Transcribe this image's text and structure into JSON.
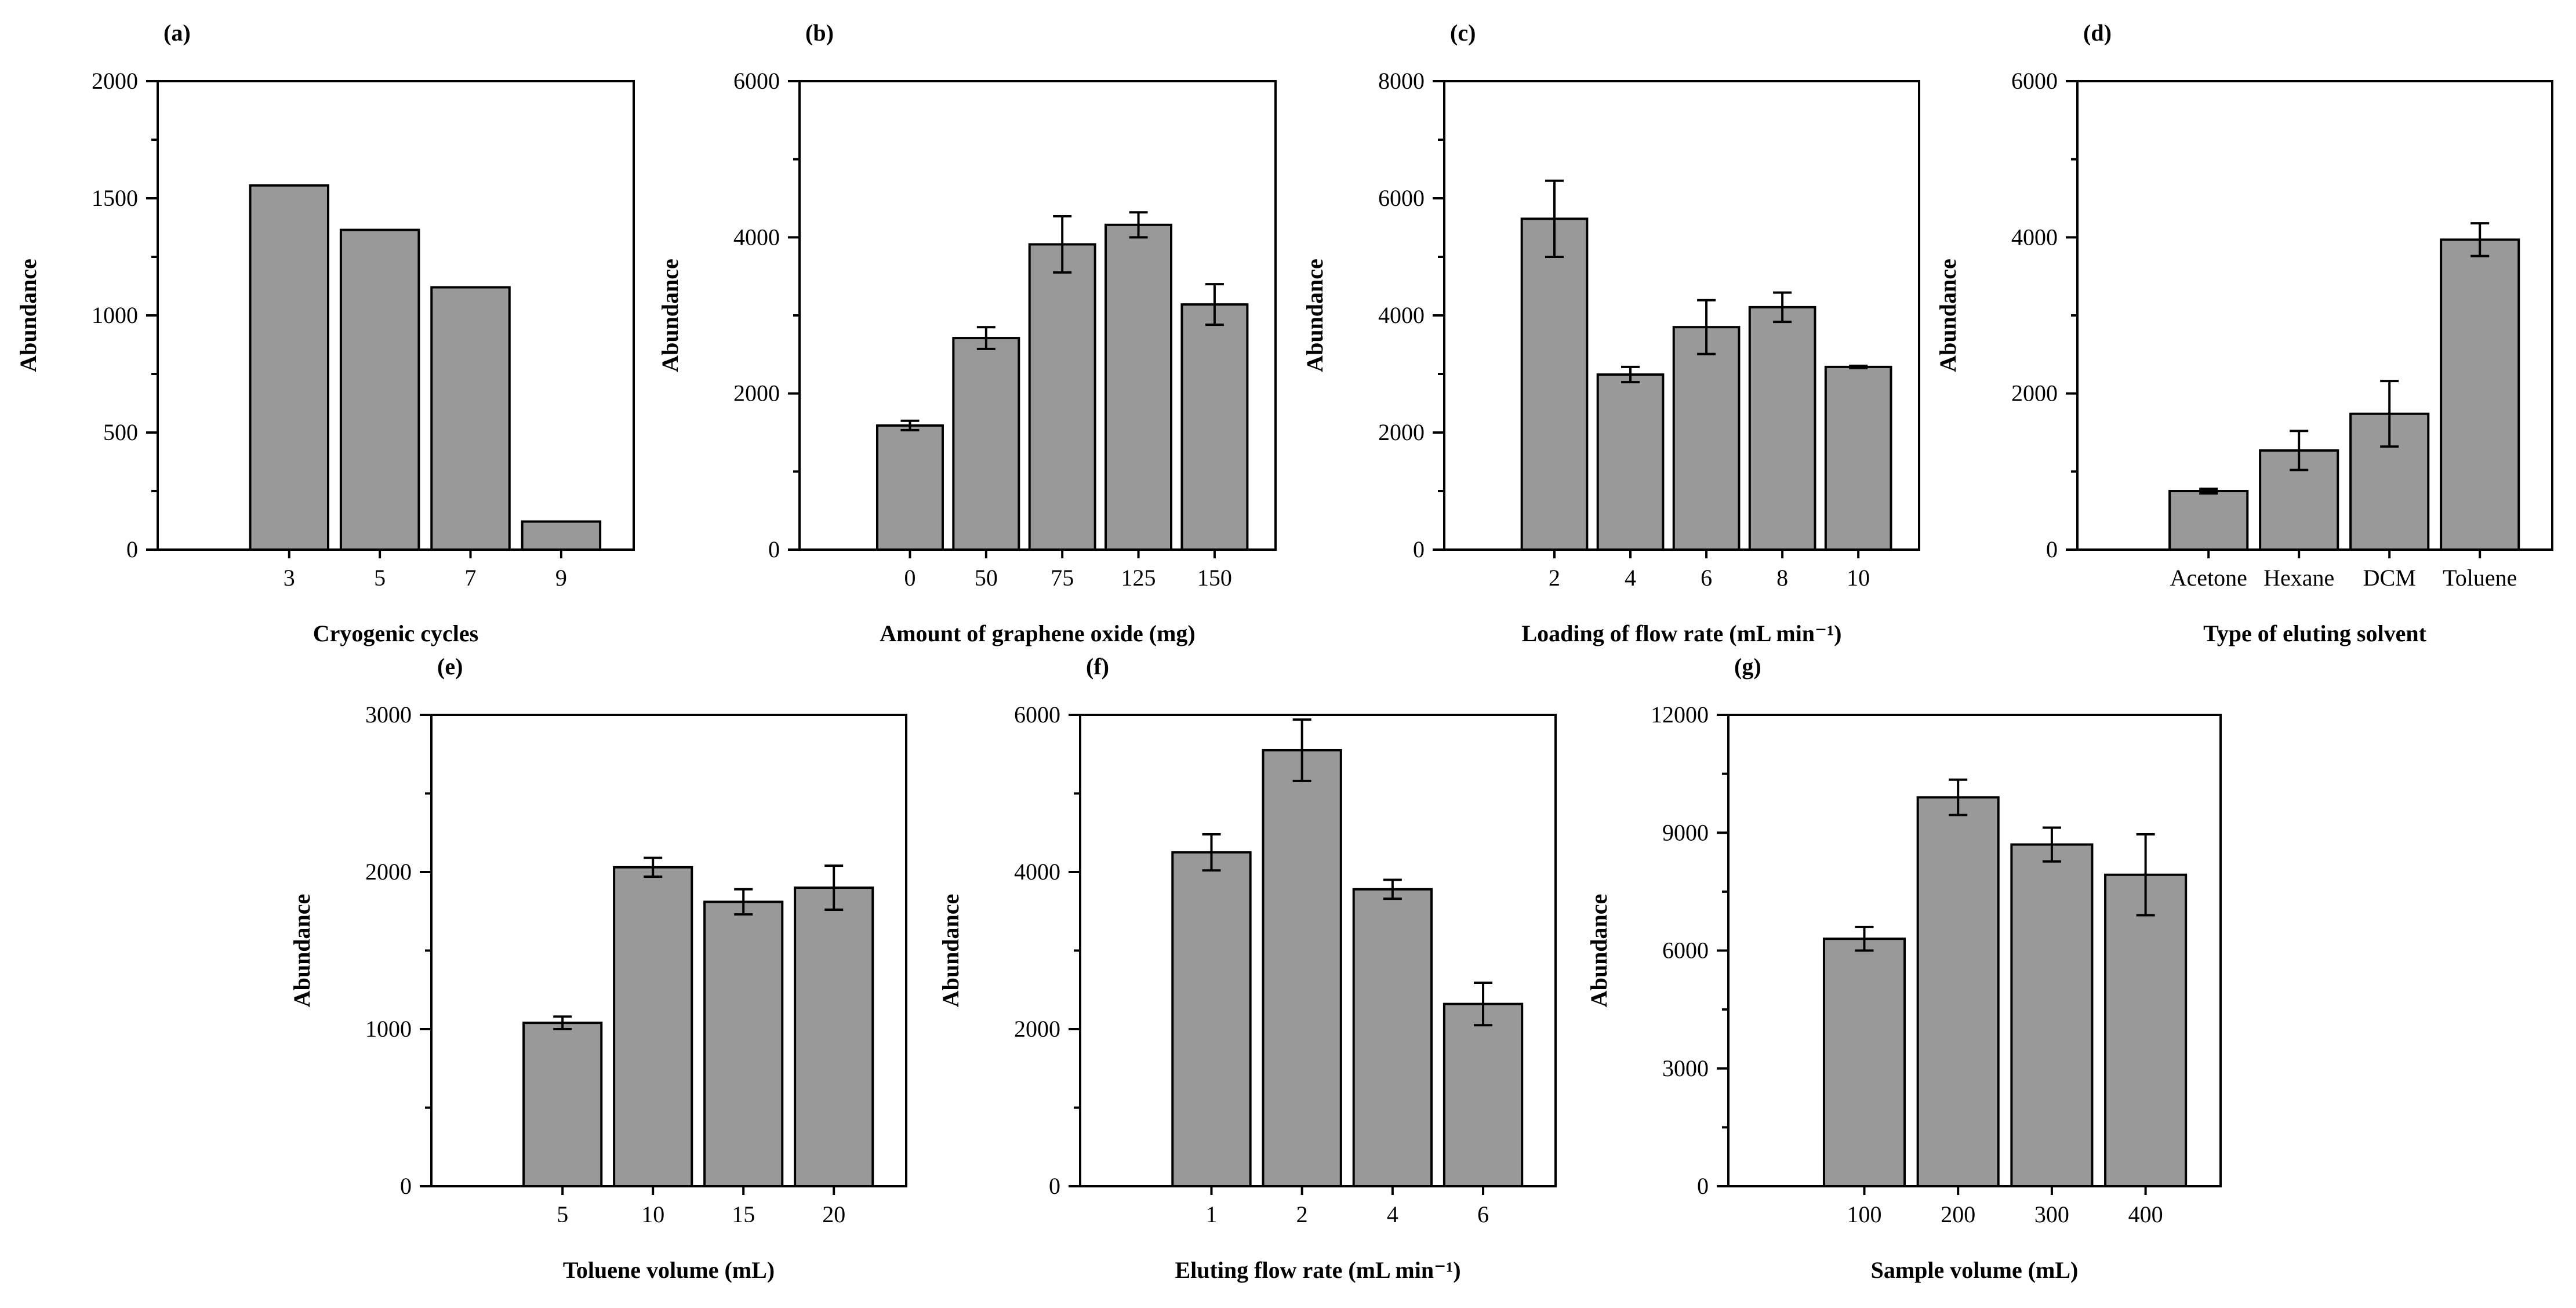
{
  "colors": {
    "bar_fill": "#999999",
    "axis": "#000000",
    "background": "#ffffff"
  },
  "chart_data": [
    {
      "panel": "(a)",
      "type": "bar",
      "title": "",
      "xlabel": "Cryogenic cycles",
      "ylabel": "Abundance",
      "categories": [
        "3",
        "5",
        "7",
        "9"
      ],
      "values": [
        1555,
        1365,
        1120,
        120
      ],
      "errors": [
        null,
        null,
        null,
        null
      ],
      "ylim": [
        0,
        2000
      ],
      "yticks": [
        0,
        500,
        1000,
        1500,
        2000
      ],
      "ytick_labels": [
        "0",
        "500",
        "1000",
        "1500",
        "2000"
      ],
      "grid": false
    },
    {
      "panel": "(b)",
      "type": "bar",
      "title": "",
      "xlabel": "Amount of graphene oxide (mg)",
      "ylabel": "Abundance",
      "categories": [
        "0",
        "50",
        "75",
        "125",
        "150"
      ],
      "values": [
        1590,
        2710,
        3910,
        4160,
        3140
      ],
      "errors": [
        60,
        140,
        360,
        160,
        260
      ],
      "ylim": [
        0,
        6000
      ],
      "yticks": [
        0,
        2000,
        4000,
        6000
      ],
      "ytick_labels": [
        "0",
        "2000",
        "4000",
        "6000"
      ],
      "grid": false
    },
    {
      "panel": "(c)",
      "type": "bar",
      "title": "",
      "xlabel": "Loading of flow rate (mL min⁻¹)",
      "ylabel": "Abundance",
      "categories": [
        "2",
        "4",
        "6",
        "8",
        "10"
      ],
      "values": [
        5650,
        2990,
        3800,
        4140,
        3120
      ],
      "errors": [
        650,
        130,
        460,
        250,
        20
      ],
      "ylim": [
        0,
        8000
      ],
      "yticks": [
        0,
        2000,
        4000,
        6000,
        8000
      ],
      "ytick_labels": [
        "0",
        "2000",
        "4000",
        "6000",
        "8000"
      ],
      "grid": false
    },
    {
      "panel": "(d)",
      "type": "bar",
      "title": "",
      "xlabel": "Type of eluting solvent",
      "ylabel": "Abundance",
      "categories": [
        "Acetone",
        "Hexane",
        "DCM",
        "Toluene"
      ],
      "values": [
        750,
        1270,
        1740,
        3970
      ],
      "errors": [
        30,
        250,
        420,
        210
      ],
      "ylim": [
        0,
        6000
      ],
      "yticks": [
        0,
        2000,
        4000,
        6000
      ],
      "ytick_labels": [
        "0",
        "2000",
        "4000",
        "6000"
      ],
      "grid": false
    },
    {
      "panel": "(e)",
      "type": "bar",
      "title": "",
      "xlabel": "Toluene volume (mL)",
      "ylabel": "Abundance",
      "categories": [
        "5",
        "10",
        "15",
        "20"
      ],
      "values": [
        1040,
        2030,
        1810,
        1900
      ],
      "errors": [
        40,
        60,
        80,
        140
      ],
      "ylim": [
        0,
        3000
      ],
      "yticks": [
        0,
        1000,
        2000,
        3000
      ],
      "ytick_labels": [
        "0",
        "1000",
        "2000",
        "3000"
      ],
      "grid": false
    },
    {
      "panel": "(f)",
      "type": "bar",
      "title": "",
      "xlabel": "Eluting flow rate (mL min⁻¹)",
      "ylabel": "Abundance",
      "categories": [
        "1",
        "2",
        "4",
        "6"
      ],
      "values": [
        4250,
        5550,
        3780,
        2320
      ],
      "errors": [
        230,
        390,
        120,
        270
      ],
      "ylim": [
        0,
        6000
      ],
      "yticks": [
        0,
        2000,
        4000,
        6000
      ],
      "ytick_labels": [
        "0",
        "2000",
        "4000",
        "6000"
      ],
      "grid": false
    },
    {
      "panel": "(g)",
      "type": "bar",
      "title": "",
      "xlabel": "Sample volume (mL)",
      "ylabel": "Abundance",
      "categories": [
        "100",
        "200",
        "300",
        "400"
      ],
      "values": [
        6300,
        9900,
        8700,
        7930
      ],
      "errors": [
        300,
        450,
        430,
        1030
      ],
      "ylim": [
        0,
        12000
      ],
      "yticks": [
        0,
        3000,
        6000,
        9000,
        12000
      ],
      "ytick_labels": [
        "0",
        "3000",
        "6000",
        "9000",
        "12000"
      ],
      "grid": false
    }
  ]
}
